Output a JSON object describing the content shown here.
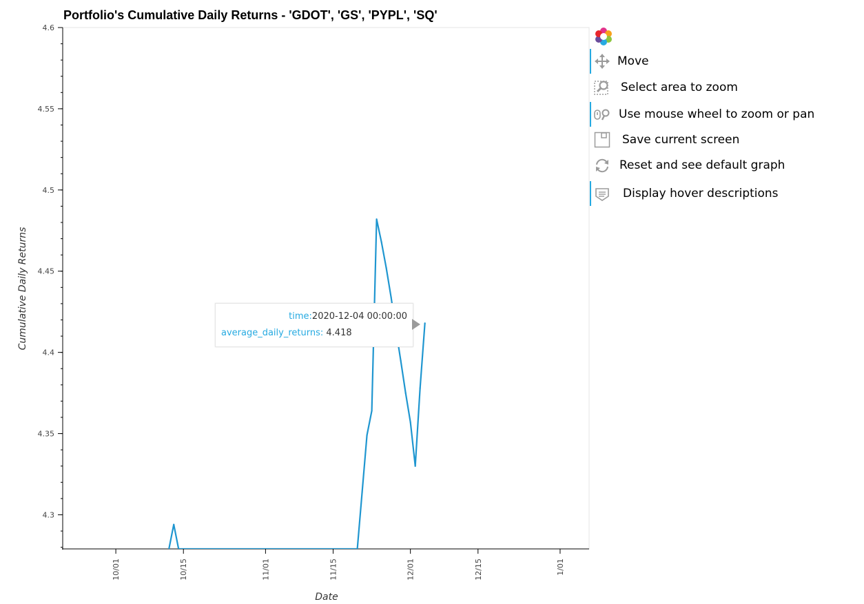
{
  "colors": {
    "line": "#1f96d0",
    "axis": "#000000",
    "frame": "#e5e5e5",
    "tooltip_key": "#26aae1",
    "tool_accent": "#26aae1"
  },
  "tooltip": {
    "time_key": "time:",
    "time_value": "2020-12-04 00:00:00",
    "returns_key": "average_daily_returns:",
    "returns_value": "4.418"
  },
  "toolbar": {
    "logo_icon": "bokeh-logo-icon",
    "tools": [
      {
        "label": "Move",
        "icon": "move-icon",
        "active": true
      },
      {
        "label": "Select area to zoom",
        "icon": "box-zoom-icon",
        "active": false
      },
      {
        "label": "Use mouse wheel to zoom or pan",
        "icon": "wheel-zoom-icon",
        "active": true
      },
      {
        "label": "Save current screen",
        "icon": "save-icon",
        "active": false
      },
      {
        "label": "Reset and see default graph",
        "icon": "reset-icon",
        "active": false
      },
      {
        "label": "Display hover descriptions",
        "icon": "hover-icon",
        "active": true
      }
    ]
  },
  "chart_data": {
    "type": "line",
    "title": "Portfolio's Cumulative Daily Returns - 'GDOT', 'GS', 'PYPL', 'SQ'",
    "xlabel": "Date",
    "ylabel": "Cumulative Daily Returns",
    "grid": false,
    "xlim": [
      "2020-09-20",
      "2021-01-07"
    ],
    "ylim": [
      4.279,
      4.6
    ],
    "yticks": [
      4.3,
      4.35,
      4.4,
      4.45,
      4.5,
      4.55,
      4.6
    ],
    "ytick_labels": [
      "4.3",
      "4.35",
      "4.4",
      "4.45",
      "4.5",
      "4.55",
      "4.6"
    ],
    "xticks": [
      "2020-10-01",
      "2020-10-15",
      "2020-11-01",
      "2020-11-15",
      "2020-12-01",
      "2020-12-15",
      "2021-01-01"
    ],
    "xtick_labels": [
      "10/01",
      "10/15",
      "11/01",
      "11/15",
      "12/01",
      "12/15",
      "1/01"
    ],
    "series": [
      {
        "name": "average_daily_returns",
        "x": [
          "2020-10-12",
          "2020-10-13",
          "2020-10-14",
          "2020-11-20",
          "2020-11-21",
          "2020-11-22",
          "2020-11-23",
          "2020-11-24",
          "2020-11-25",
          "2020-11-26",
          "2020-11-27",
          "2020-11-28",
          "2020-11-29",
          "2020-11-30",
          "2020-12-01",
          "2020-12-02",
          "2020-12-03",
          "2020-12-04"
        ],
        "values": [
          4.279,
          4.294,
          4.279,
          4.279,
          4.314,
          4.349,
          4.364,
          4.482,
          4.468,
          4.452,
          4.434,
          4.414,
          4.395,
          4.375,
          4.357,
          4.33,
          4.378,
          4.418
        ]
      }
    ]
  }
}
